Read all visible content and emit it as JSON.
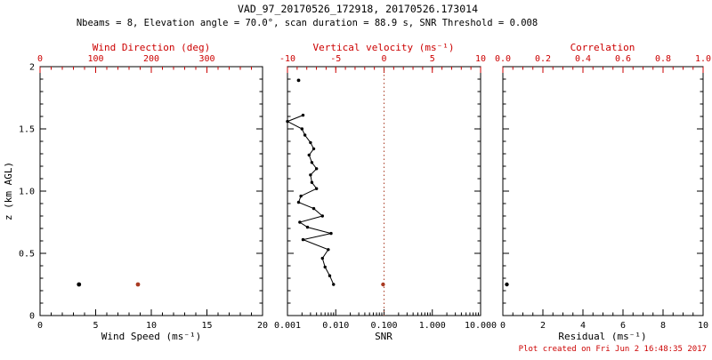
{
  "header": {
    "title": "VAD_97_20170526_172918, 20170526.173014",
    "subtitle": "Nbeams = 8, Elevation angle = 70.0°, scan duration = 88.9 s, SNR Threshold = 0.008"
  },
  "footer": {
    "created": "Plot created on Fri Jun 2 16:48:35 2017"
  },
  "colors": {
    "axis_red": "#cc0000",
    "marker_red": "#a93a22",
    "black": "#000000"
  },
  "chart_data": [
    {
      "type": "scatter",
      "panel": "wind",
      "y_axis": {
        "label": "z (km AGL)",
        "range": [
          0,
          2
        ],
        "ticks": [
          0,
          0.5,
          1,
          1.5,
          2
        ],
        "tick_labels": [
          "0",
          "0.5",
          "1.0",
          "1.5",
          "2"
        ],
        "minor_divs": 5,
        "show_labels": true
      },
      "bottom_axis": {
        "label": "Wind Speed (ms⁻¹)",
        "scale": "linear",
        "range": [
          0,
          20
        ],
        "ticks": [
          0,
          5,
          10,
          15,
          20
        ],
        "tick_labels": [
          "0",
          "5",
          "10",
          "15",
          "20"
        ],
        "minor_divs": 5
      },
      "top_axis": {
        "label": "Wind Direction (deg)",
        "scale": "linear",
        "range": [
          0,
          400
        ],
        "ticks": [
          0,
          100,
          200,
          300
        ],
        "tick_labels": [
          "0",
          "100",
          "200",
          "300"
        ],
        "minor_divs": 5
      },
      "series": [
        {
          "name": "wind-speed-point",
          "axis": "bottom",
          "color": "black",
          "line": false,
          "marker_r": 2.4,
          "points": [
            {
              "x": 3.5,
              "z": 0.25
            }
          ]
        },
        {
          "name": "wind-direction-point",
          "axis": "top",
          "color": "marker_red",
          "line": false,
          "marker_r": 2.4,
          "points": [
            {
              "x": 176,
              "z": 0.25
            }
          ]
        }
      ]
    },
    {
      "type": "line",
      "panel": "snr",
      "y_axis": {
        "label": "z (km AGL)",
        "range": [
          0,
          2
        ],
        "ticks": [
          0,
          0.5,
          1,
          1.5,
          2
        ],
        "tick_labels": [
          "0",
          "0.5",
          "1.0",
          "1.5",
          "2"
        ],
        "minor_divs": 5,
        "show_labels": false
      },
      "bottom_axis": {
        "label": "SNR",
        "scale": "log",
        "range": [
          0.001,
          10
        ],
        "ticks": [
          0.001,
          0.01,
          0.1,
          1,
          10
        ],
        "tick_labels": [
          "0.001",
          "0.010",
          "0.100",
          "1.000",
          "10.000"
        ]
      },
      "top_axis": {
        "label": "Vertical velocity (ms⁻¹)",
        "scale": "linear",
        "range": [
          -10,
          10
        ],
        "ticks": [
          -10,
          -5,
          0,
          5,
          10
        ],
        "tick_labels": [
          "-10",
          "-5",
          "0",
          "5",
          "10"
        ],
        "minor_divs": 5
      },
      "ref_line": {
        "axis": "top",
        "value": 0,
        "color": "marker_red",
        "style": "dotted"
      },
      "series": [
        {
          "name": "snr-profile",
          "axis": "bottom",
          "color": "black",
          "line": true,
          "marker_r": 1.7,
          "points": [
            {
              "x": 0.009,
              "z": 0.25
            },
            {
              "x": 0.0075,
              "z": 0.32
            },
            {
              "x": 0.006,
              "z": 0.39
            },
            {
              "x": 0.0053,
              "z": 0.46
            },
            {
              "x": 0.007,
              "z": 0.53
            },
            {
              "x": 0.0021,
              "z": 0.61
            },
            {
              "x": 0.008,
              "z": 0.66
            },
            {
              "x": 0.0026,
              "z": 0.71
            },
            {
              "x": 0.0018,
              "z": 0.75
            },
            {
              "x": 0.0053,
              "z": 0.8
            },
            {
              "x": 0.0035,
              "z": 0.86
            },
            {
              "x": 0.0017,
              "z": 0.91
            },
            {
              "x": 0.0019,
              "z": 0.96
            },
            {
              "x": 0.004,
              "z": 1.02
            },
            {
              "x": 0.0032,
              "z": 1.07
            },
            {
              "x": 0.003,
              "z": 1.13
            },
            {
              "x": 0.004,
              "z": 1.18
            },
            {
              "x": 0.0032,
              "z": 1.23
            },
            {
              "x": 0.0028,
              "z": 1.29
            },
            {
              "x": 0.0035,
              "z": 1.34
            },
            {
              "x": 0.003,
              "z": 1.39
            },
            {
              "x": 0.0023,
              "z": 1.45
            },
            {
              "x": 0.002,
              "z": 1.5
            },
            {
              "x": 0.001,
              "z": 1.56
            },
            {
              "x": 0.0021,
              "z": 1.61
            }
          ]
        },
        {
          "name": "snr-isolated-point",
          "axis": "bottom",
          "color": "black",
          "line": false,
          "marker_r": 1.9,
          "points": [
            {
              "x": 0.0017,
              "z": 1.89
            }
          ]
        },
        {
          "name": "vertical-velocity-point",
          "axis": "top",
          "color": "marker_red",
          "line": false,
          "marker_r": 2.2,
          "points": [
            {
              "x": -0.1,
              "z": 0.25
            }
          ]
        }
      ]
    },
    {
      "type": "scatter",
      "panel": "residual",
      "y_axis": {
        "label": "z (km AGL)",
        "range": [
          0,
          2
        ],
        "ticks": [
          0,
          0.5,
          1,
          1.5,
          2
        ],
        "tick_labels": [
          "0",
          "0.5",
          "1.0",
          "1.5",
          "2"
        ],
        "minor_divs": 5,
        "show_labels": false
      },
      "bottom_axis": {
        "label": "Residual (ms⁻¹)",
        "scale": "linear",
        "range": [
          0,
          10
        ],
        "ticks": [
          0,
          2,
          4,
          6,
          8,
          10
        ],
        "tick_labels": [
          "0",
          "2",
          "4",
          "6",
          "8",
          "10"
        ],
        "minor_divs": 4
      },
      "top_axis": {
        "label": "Correlation",
        "scale": "linear",
        "range": [
          0,
          1
        ],
        "ticks": [
          0,
          0.2,
          0.4,
          0.6,
          0.8,
          1
        ],
        "tick_labels": [
          "0.0",
          "0.2",
          "0.4",
          "0.6",
          "0.8",
          "1.0"
        ],
        "minor_divs": 4
      },
      "series": [
        {
          "name": "residual-point",
          "axis": "bottom",
          "color": "black",
          "line": false,
          "marker_r": 2.2,
          "points": [
            {
              "x": 0.2,
              "z": 0.25
            }
          ]
        }
      ]
    }
  ]
}
